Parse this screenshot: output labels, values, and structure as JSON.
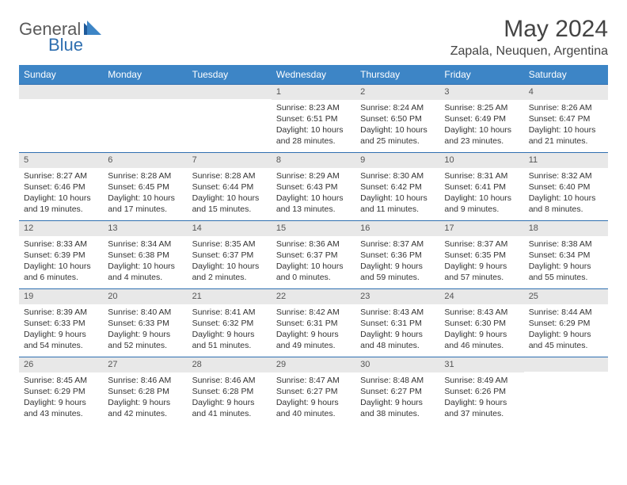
{
  "logo": {
    "part1": "General",
    "part2": "Blue"
  },
  "title": "May 2024",
  "location": "Zapala, Neuquen, Argentina",
  "colors": {
    "header_bg": "#3d85c6",
    "border": "#2f6fb0",
    "daynum_bg": "#e8e8e8",
    "text": "#333333"
  },
  "weekdays": [
    "Sunday",
    "Monday",
    "Tuesday",
    "Wednesday",
    "Thursday",
    "Friday",
    "Saturday"
  ],
  "weeks": [
    [
      {
        "n": "",
        "sr": "",
        "ss": "",
        "dl1": "",
        "dl2": ""
      },
      {
        "n": "",
        "sr": "",
        "ss": "",
        "dl1": "",
        "dl2": ""
      },
      {
        "n": "",
        "sr": "",
        "ss": "",
        "dl1": "",
        "dl2": ""
      },
      {
        "n": "1",
        "sr": "Sunrise: 8:23 AM",
        "ss": "Sunset: 6:51 PM",
        "dl1": "Daylight: 10 hours",
        "dl2": "and 28 minutes."
      },
      {
        "n": "2",
        "sr": "Sunrise: 8:24 AM",
        "ss": "Sunset: 6:50 PM",
        "dl1": "Daylight: 10 hours",
        "dl2": "and 25 minutes."
      },
      {
        "n": "3",
        "sr": "Sunrise: 8:25 AM",
        "ss": "Sunset: 6:49 PM",
        "dl1": "Daylight: 10 hours",
        "dl2": "and 23 minutes."
      },
      {
        "n": "4",
        "sr": "Sunrise: 8:26 AM",
        "ss": "Sunset: 6:47 PM",
        "dl1": "Daylight: 10 hours",
        "dl2": "and 21 minutes."
      }
    ],
    [
      {
        "n": "5",
        "sr": "Sunrise: 8:27 AM",
        "ss": "Sunset: 6:46 PM",
        "dl1": "Daylight: 10 hours",
        "dl2": "and 19 minutes."
      },
      {
        "n": "6",
        "sr": "Sunrise: 8:28 AM",
        "ss": "Sunset: 6:45 PM",
        "dl1": "Daylight: 10 hours",
        "dl2": "and 17 minutes."
      },
      {
        "n": "7",
        "sr": "Sunrise: 8:28 AM",
        "ss": "Sunset: 6:44 PM",
        "dl1": "Daylight: 10 hours",
        "dl2": "and 15 minutes."
      },
      {
        "n": "8",
        "sr": "Sunrise: 8:29 AM",
        "ss": "Sunset: 6:43 PM",
        "dl1": "Daylight: 10 hours",
        "dl2": "and 13 minutes."
      },
      {
        "n": "9",
        "sr": "Sunrise: 8:30 AM",
        "ss": "Sunset: 6:42 PM",
        "dl1": "Daylight: 10 hours",
        "dl2": "and 11 minutes."
      },
      {
        "n": "10",
        "sr": "Sunrise: 8:31 AM",
        "ss": "Sunset: 6:41 PM",
        "dl1": "Daylight: 10 hours",
        "dl2": "and 9 minutes."
      },
      {
        "n": "11",
        "sr": "Sunrise: 8:32 AM",
        "ss": "Sunset: 6:40 PM",
        "dl1": "Daylight: 10 hours",
        "dl2": "and 8 minutes."
      }
    ],
    [
      {
        "n": "12",
        "sr": "Sunrise: 8:33 AM",
        "ss": "Sunset: 6:39 PM",
        "dl1": "Daylight: 10 hours",
        "dl2": "and 6 minutes."
      },
      {
        "n": "13",
        "sr": "Sunrise: 8:34 AM",
        "ss": "Sunset: 6:38 PM",
        "dl1": "Daylight: 10 hours",
        "dl2": "and 4 minutes."
      },
      {
        "n": "14",
        "sr": "Sunrise: 8:35 AM",
        "ss": "Sunset: 6:37 PM",
        "dl1": "Daylight: 10 hours",
        "dl2": "and 2 minutes."
      },
      {
        "n": "15",
        "sr": "Sunrise: 8:36 AM",
        "ss": "Sunset: 6:37 PM",
        "dl1": "Daylight: 10 hours",
        "dl2": "and 0 minutes."
      },
      {
        "n": "16",
        "sr": "Sunrise: 8:37 AM",
        "ss": "Sunset: 6:36 PM",
        "dl1": "Daylight: 9 hours",
        "dl2": "and 59 minutes."
      },
      {
        "n": "17",
        "sr": "Sunrise: 8:37 AM",
        "ss": "Sunset: 6:35 PM",
        "dl1": "Daylight: 9 hours",
        "dl2": "and 57 minutes."
      },
      {
        "n": "18",
        "sr": "Sunrise: 8:38 AM",
        "ss": "Sunset: 6:34 PM",
        "dl1": "Daylight: 9 hours",
        "dl2": "and 55 minutes."
      }
    ],
    [
      {
        "n": "19",
        "sr": "Sunrise: 8:39 AM",
        "ss": "Sunset: 6:33 PM",
        "dl1": "Daylight: 9 hours",
        "dl2": "and 54 minutes."
      },
      {
        "n": "20",
        "sr": "Sunrise: 8:40 AM",
        "ss": "Sunset: 6:33 PM",
        "dl1": "Daylight: 9 hours",
        "dl2": "and 52 minutes."
      },
      {
        "n": "21",
        "sr": "Sunrise: 8:41 AM",
        "ss": "Sunset: 6:32 PM",
        "dl1": "Daylight: 9 hours",
        "dl2": "and 51 minutes."
      },
      {
        "n": "22",
        "sr": "Sunrise: 8:42 AM",
        "ss": "Sunset: 6:31 PM",
        "dl1": "Daylight: 9 hours",
        "dl2": "and 49 minutes."
      },
      {
        "n": "23",
        "sr": "Sunrise: 8:43 AM",
        "ss": "Sunset: 6:31 PM",
        "dl1": "Daylight: 9 hours",
        "dl2": "and 48 minutes."
      },
      {
        "n": "24",
        "sr": "Sunrise: 8:43 AM",
        "ss": "Sunset: 6:30 PM",
        "dl1": "Daylight: 9 hours",
        "dl2": "and 46 minutes."
      },
      {
        "n": "25",
        "sr": "Sunrise: 8:44 AM",
        "ss": "Sunset: 6:29 PM",
        "dl1": "Daylight: 9 hours",
        "dl2": "and 45 minutes."
      }
    ],
    [
      {
        "n": "26",
        "sr": "Sunrise: 8:45 AM",
        "ss": "Sunset: 6:29 PM",
        "dl1": "Daylight: 9 hours",
        "dl2": "and 43 minutes."
      },
      {
        "n": "27",
        "sr": "Sunrise: 8:46 AM",
        "ss": "Sunset: 6:28 PM",
        "dl1": "Daylight: 9 hours",
        "dl2": "and 42 minutes."
      },
      {
        "n": "28",
        "sr": "Sunrise: 8:46 AM",
        "ss": "Sunset: 6:28 PM",
        "dl1": "Daylight: 9 hours",
        "dl2": "and 41 minutes."
      },
      {
        "n": "29",
        "sr": "Sunrise: 8:47 AM",
        "ss": "Sunset: 6:27 PM",
        "dl1": "Daylight: 9 hours",
        "dl2": "and 40 minutes."
      },
      {
        "n": "30",
        "sr": "Sunrise: 8:48 AM",
        "ss": "Sunset: 6:27 PM",
        "dl1": "Daylight: 9 hours",
        "dl2": "and 38 minutes."
      },
      {
        "n": "31",
        "sr": "Sunrise: 8:49 AM",
        "ss": "Sunset: 6:26 PM",
        "dl1": "Daylight: 9 hours",
        "dl2": "and 37 minutes."
      },
      {
        "n": "",
        "sr": "",
        "ss": "",
        "dl1": "",
        "dl2": ""
      }
    ]
  ]
}
